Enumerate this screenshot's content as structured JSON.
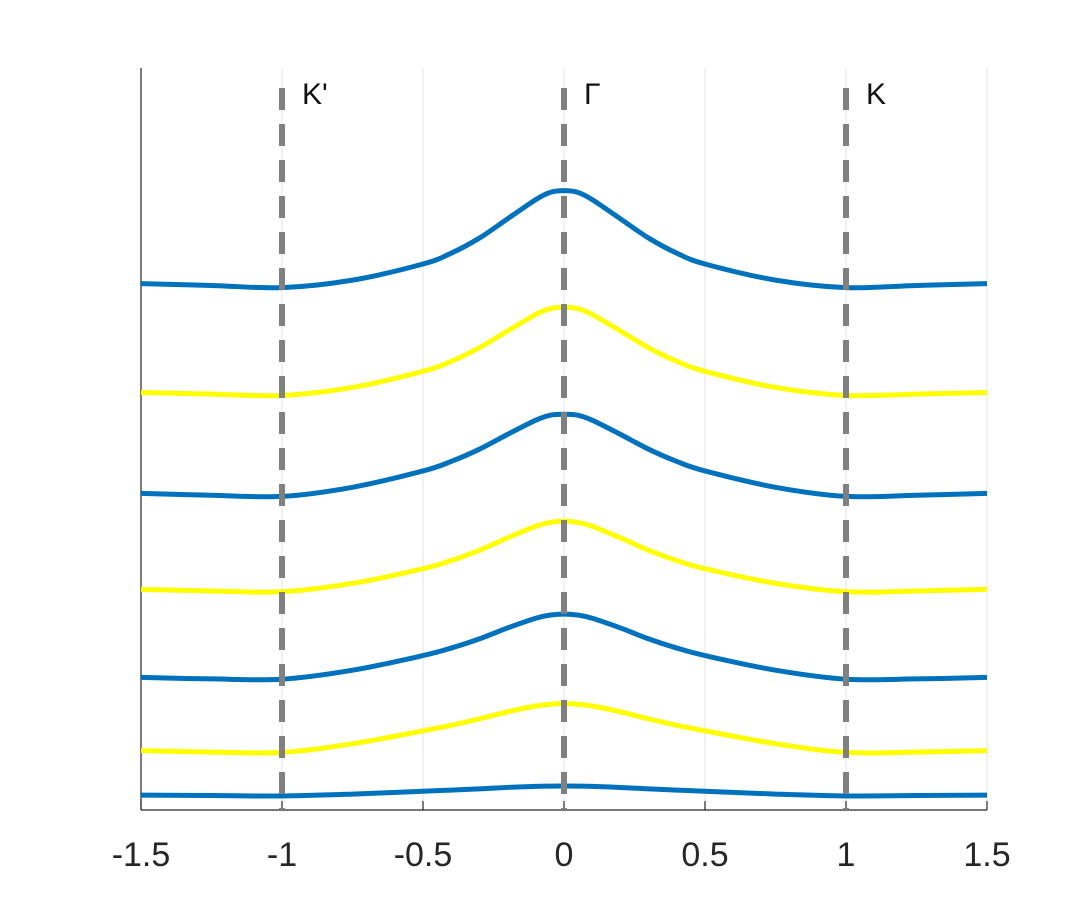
{
  "chart_data": {
    "type": "line",
    "title": "",
    "xlabel": "",
    "ylabel": "",
    "xlim": [
      -1.5,
      1.5
    ],
    "ylim": [
      0,
      7.5
    ],
    "xticks": [
      -1.5,
      -1,
      -0.5,
      0,
      0.5,
      1,
      1.5
    ],
    "xtick_labels": [
      "-1.5",
      "-1",
      "-0.5",
      "0",
      "0.5",
      "1",
      "1.5"
    ],
    "yticks_visible": false,
    "grid": "vertical",
    "legend": "none",
    "reference_lines": [
      {
        "x": -1,
        "label": "K'",
        "style": "dashed",
        "color": "#808080"
      },
      {
        "x": 0,
        "label": "Γ",
        "style": "dashed",
        "color": "#808080"
      },
      {
        "x": 1,
        "label": "K",
        "style": "dashed",
        "color": "#808080"
      }
    ],
    "x": [
      -1.5,
      -1.25,
      -1.0,
      -0.75,
      -0.5,
      -0.4,
      -0.3,
      -0.2,
      -0.1,
      -0.05,
      0.0,
      0.05,
      0.1,
      0.2,
      0.3,
      0.4,
      0.5,
      0.75,
      1.0,
      1.25,
      1.5
    ],
    "series": [
      {
        "color": "#0072BD",
        "baseline": 0.15,
        "amplitude": 0.1,
        "width": 0.3,
        "values": [
          0.15,
          0.146,
          0.142,
          0.161,
          0.19,
          0.201,
          0.214,
          0.228,
          0.239,
          0.241,
          0.242,
          0.241,
          0.239,
          0.228,
          0.214,
          0.201,
          0.19,
          0.161,
          0.142,
          0.146,
          0.15
        ]
      },
      {
        "color": "#FFFF00",
        "baseline": 0.6,
        "amplitude": 0.48,
        "width": 0.27,
        "values": [
          0.6,
          0.585,
          0.582,
          0.67,
          0.8,
          0.856,
          0.921,
          0.993,
          1.051,
          1.069,
          1.075,
          1.069,
          1.051,
          0.993,
          0.921,
          0.856,
          0.8,
          0.67,
          0.582,
          0.585,
          0.6
        ]
      },
      {
        "color": "#0072BD",
        "baseline": 1.34,
        "amplitude": 0.66,
        "width": 0.25,
        "values": [
          1.34,
          1.325,
          1.322,
          1.413,
          1.561,
          1.637,
          1.73,
          1.84,
          1.938,
          1.97,
          1.98,
          1.97,
          1.938,
          1.84,
          1.73,
          1.637,
          1.561,
          1.413,
          1.322,
          1.325,
          1.34
        ]
      },
      {
        "color": "#FFFF00",
        "baseline": 2.23,
        "amplitude": 0.72,
        "width": 0.24,
        "values": [
          2.23,
          2.214,
          2.206,
          2.291,
          2.439,
          2.522,
          2.625,
          2.751,
          2.868,
          2.907,
          2.92,
          2.907,
          2.868,
          2.751,
          2.625,
          2.522,
          2.439,
          2.291,
          2.206,
          2.214,
          2.23
        ]
      },
      {
        "color": "#0072BD",
        "baseline": 3.2,
        "amplitude": 0.83,
        "width": 0.23,
        "values": [
          3.2,
          3.181,
          3.17,
          3.262,
          3.427,
          3.523,
          3.647,
          3.797,
          3.94,
          3.99,
          4.0,
          3.99,
          3.94,
          3.797,
          3.647,
          3.523,
          3.427,
          3.262,
          3.17,
          3.181,
          3.2
        ]
      },
      {
        "color": "#FFFF00",
        "baseline": 4.22,
        "amplitude": 0.9,
        "width": 0.22,
        "values": [
          4.22,
          4.204,
          4.19,
          4.271,
          4.434,
          4.535,
          4.673,
          4.842,
          5.009,
          5.067,
          5.08,
          5.067,
          5.009,
          4.842,
          4.673,
          4.535,
          4.434,
          4.271,
          4.19,
          4.204,
          4.22
        ]
      },
      {
        "color": "#0072BD",
        "baseline": 5.32,
        "amplitude": 1.0,
        "width": 0.21,
        "values": [
          5.32,
          5.302,
          5.28,
          5.356,
          5.519,
          5.628,
          5.781,
          5.976,
          6.17,
          6.242,
          6.26,
          6.242,
          6.17,
          5.976,
          5.781,
          5.628,
          5.519,
          5.356,
          5.28,
          5.302,
          5.32
        ]
      }
    ]
  }
}
